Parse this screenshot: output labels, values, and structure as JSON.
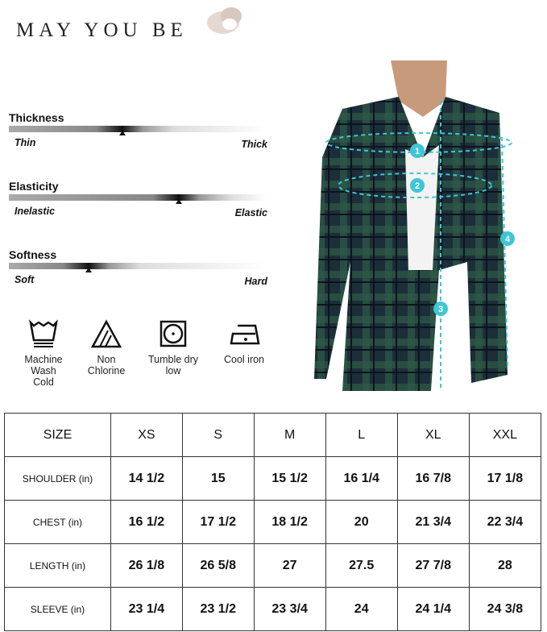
{
  "brand": "MAY YOU BE",
  "attributes": [
    {
      "title": "Thickness",
      "low": "Thin",
      "high": "Thick",
      "level": 0.44
    },
    {
      "title": "Elasticity",
      "low": "Inelastic",
      "high": "Elastic",
      "level": 0.66
    },
    {
      "title": "Softness",
      "low": "Soft",
      "high": "Hard",
      "level": 0.31
    }
  ],
  "care": [
    {
      "icon": "machine-wash-cold-icon",
      "label": "Machine\nWash\nCold"
    },
    {
      "icon": "non-chlorine-icon",
      "label": "Non\nChlorine"
    },
    {
      "icon": "tumble-dry-low-icon",
      "label": "Tumble dry\nlow"
    },
    {
      "icon": "cool-iron-icon",
      "label": "Cool iron"
    }
  ],
  "measure_markers": [
    "1",
    "2",
    "3",
    "4"
  ],
  "colors": {
    "measure_line": "#3ec6d6",
    "plaid_base": "#1c2e3a",
    "plaid_green": "#2e5a46"
  },
  "size_table": {
    "header": [
      "SIZE",
      "XS",
      "S",
      "M",
      "L",
      "XL",
      "XXL"
    ],
    "rows": [
      [
        "SHOULDER (in)",
        "14 1/2",
        "15",
        "15 1/2",
        "16 1/4",
        "16 7/8",
        "17 1/8"
      ],
      [
        "CHEST (in)",
        "16 1/2",
        "17 1/2",
        "18 1/2",
        "20",
        "21 3/4",
        "22 3/4"
      ],
      [
        "LENGTH (in)",
        "26 1/8",
        "26 5/8",
        "27",
        "27.5",
        "27 7/8",
        "28"
      ],
      [
        "SLEEVE (in)",
        "23 1/4",
        "23 1/2",
        "23 3/4",
        "24",
        "24 1/4",
        "24 3/8"
      ]
    ]
  }
}
